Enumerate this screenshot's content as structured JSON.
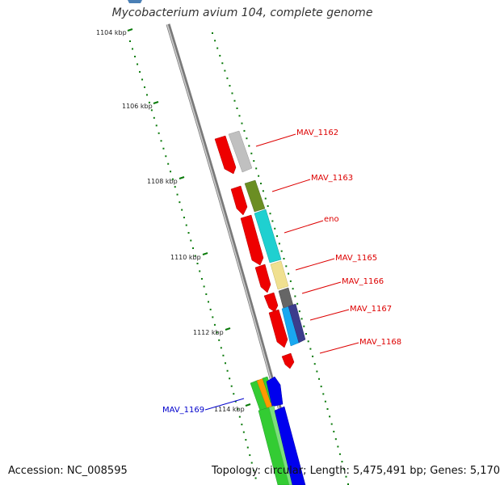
{
  "title": "Mycobacterium avium 104, complete genome",
  "footer": {
    "accession": "Accession: NC_008595",
    "stats": "Topology: circular; Length: 5,475,491 bp; Genes: 5,170"
  },
  "colors": {
    "backbone": "#888888",
    "tick": "#0a7a0a",
    "label_red": "#dd0000",
    "label_blue": "#0000cc"
  },
  "ticks": [
    {
      "kbp": 1104,
      "label": "1104 kbp"
    },
    {
      "kbp": 1106,
      "label": "1106 kbp"
    },
    {
      "kbp": 1108,
      "label": "1108 kbp"
    },
    {
      "kbp": 1110,
      "label": "1110 kbp"
    },
    {
      "kbp": 1112,
      "label": "1112 kbp"
    },
    {
      "kbp": 1114,
      "label": "1114 kbp"
    }
  ],
  "gene_labels": [
    {
      "name": "MAV_1162",
      "color": "red"
    },
    {
      "name": "MAV_1163",
      "color": "red"
    },
    {
      "name": "eno",
      "color": "red"
    },
    {
      "name": "MAV_1165",
      "color": "red"
    },
    {
      "name": "MAV_1166",
      "color": "red"
    },
    {
      "name": "MAV_1167",
      "color": "red"
    },
    {
      "name": "MAV_1168",
      "color": "red"
    },
    {
      "name": "MAV_1169",
      "color": "blue"
    }
  ]
}
